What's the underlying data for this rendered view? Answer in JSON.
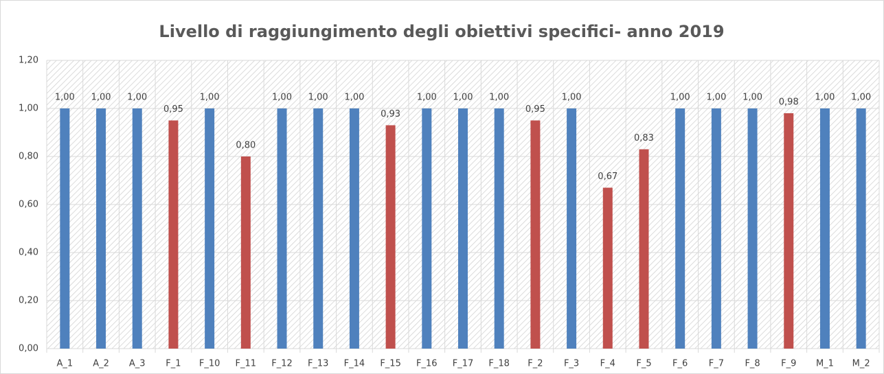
{
  "chart_data": {
    "type": "bar",
    "title": "Livello di raggiungimento degli obiettivi specifici- anno 2019",
    "categories": [
      "A_1",
      "A_2",
      "A_3",
      "F_1",
      "F_10",
      "F_11",
      "F_12",
      "F_13",
      "F_14",
      "F_15",
      "F_16",
      "F_17",
      "F_18",
      "F_2",
      "F_3",
      "F_4",
      "F_5",
      "F_6",
      "F_7",
      "F_8",
      "F_9",
      "M_1",
      "M_2"
    ],
    "values": [
      1.0,
      1.0,
      1.0,
      0.95,
      1.0,
      0.8,
      1.0,
      1.0,
      1.0,
      0.93,
      1.0,
      1.0,
      1.0,
      0.95,
      1.0,
      0.67,
      0.83,
      1.0,
      1.0,
      1.0,
      0.98,
      1.0,
      1.0
    ],
    "value_labels": [
      "1,00",
      "1,00",
      "1,00",
      "0,95",
      "1,00",
      "0,80",
      "1,00",
      "1,00",
      "1,00",
      "0,93",
      "1,00",
      "1,00",
      "1,00",
      "0,95",
      "1,00",
      "0,67",
      "0,83",
      "1,00",
      "1,00",
      "1,00",
      "0,98",
      "1,00",
      "1,00"
    ],
    "colors": [
      "#4f81bd",
      "#4f81bd",
      "#4f81bd",
      "#c0504d",
      "#4f81bd",
      "#c0504d",
      "#4f81bd",
      "#4f81bd",
      "#4f81bd",
      "#c0504d",
      "#4f81bd",
      "#4f81bd",
      "#4f81bd",
      "#c0504d",
      "#4f81bd",
      "#c0504d",
      "#c0504d",
      "#4f81bd",
      "#4f81bd",
      "#4f81bd",
      "#c0504d",
      "#4f81bd",
      "#4f81bd"
    ],
    "ylim": [
      0,
      1.2
    ],
    "yticks": [
      {
        "value": 0,
        "label": "0,00"
      },
      {
        "value": 0.2,
        "label": "0,20"
      },
      {
        "value": 0.4,
        "label": "0,40"
      },
      {
        "value": 0.6,
        "label": "0,60"
      },
      {
        "value": 0.8,
        "label": "0,80"
      },
      {
        "value": 1.0,
        "label": "1,00"
      },
      {
        "value": 1.2,
        "label": "1,20"
      }
    ],
    "grid": true
  }
}
